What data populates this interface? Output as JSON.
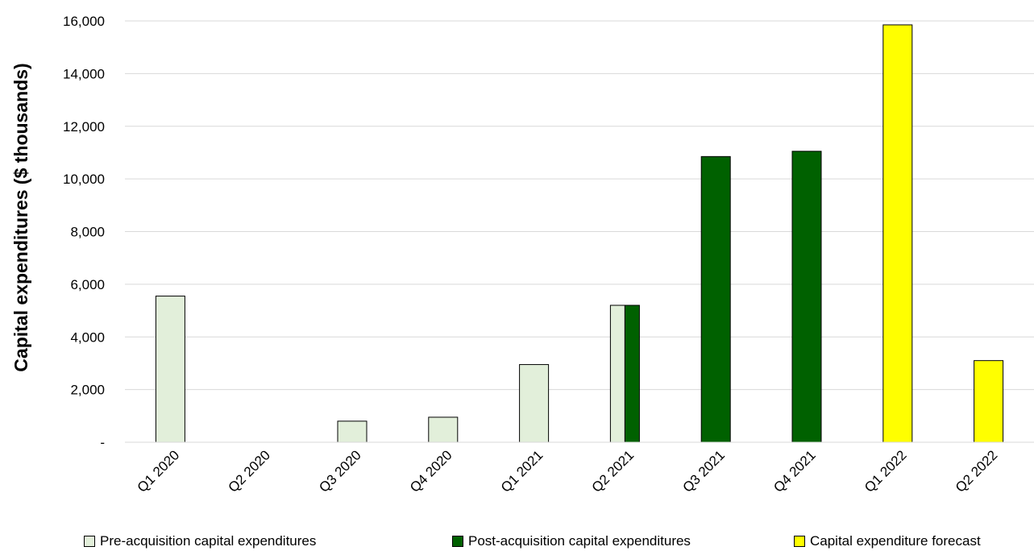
{
  "chart_data": {
    "type": "bar",
    "title": "",
    "xlabel": "",
    "ylabel": "Capital expenditures ($ thousands)",
    "ylim": [
      0,
      16000
    ],
    "yticks": [
      0,
      2000,
      4000,
      6000,
      8000,
      10000,
      12000,
      14000,
      16000
    ],
    "ytick_labels": [
      "-",
      "2,000",
      "4,000",
      "6,000",
      "8,000",
      "10,000",
      "12,000",
      "14,000",
      "16,000"
    ],
    "grid": true,
    "legend_position": "bottom",
    "categories": [
      "Q1 2020",
      "Q2 2020",
      "Q3 2020",
      "Q4 2020",
      "Q1 2021",
      "Q2 2021",
      "Q3 2021",
      "Q4 2021",
      "Q1 2022",
      "Q2 2022"
    ],
    "series": [
      {
        "name": "Pre-acquisition capital expenditures",
        "color": "#e2efda",
        "values": [
          5550,
          0,
          800,
          950,
          2950,
          5200,
          0,
          0,
          0,
          0
        ]
      },
      {
        "name": "Post-acquisition capital expenditures",
        "color": "#006100",
        "values": [
          0,
          0,
          0,
          0,
          0,
          5200,
          10850,
          11050,
          0,
          0
        ]
      },
      {
        "name": "Capital expenditure forecast",
        "color": "#ffff00",
        "values": [
          0,
          0,
          0,
          0,
          0,
          0,
          0,
          0,
          15850,
          3100
        ]
      }
    ]
  }
}
